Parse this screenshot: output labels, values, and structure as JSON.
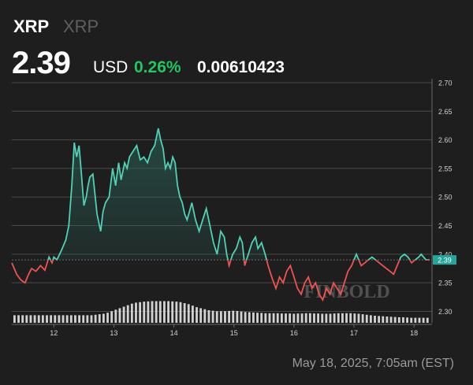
{
  "header": {
    "name": "XRP",
    "ticker": "XRP",
    "price": "2.39",
    "currency": "USD",
    "change": "0.26%",
    "btc_price": "0.00610423"
  },
  "footer": {
    "timestamp": "May 18, 2025, 7:05am (EST)"
  },
  "watermark": "FINBOLD",
  "colors": {
    "background": "#1e1e1e",
    "up_line": "#4fd1b5",
    "down_line": "#ef5350",
    "change_positive": "#22c55e",
    "grid": "#4a4a4a",
    "volume": "#e6e6e6"
  },
  "chart_data": {
    "type": "line",
    "current_price": 2.39,
    "current_price_label": "2.39",
    "baseline": 2.39,
    "ylim": [
      2.28,
      2.7
    ],
    "yticks": [
      "2.30",
      "2.35",
      "2.40",
      "2.45",
      "2.50",
      "2.55",
      "2.60",
      "2.65",
      "2.70"
    ],
    "xlim": [
      11.3,
      18.3
    ],
    "xticks": [
      {
        "label": "12",
        "x": 12
      },
      {
        "label": "13",
        "x": 13
      },
      {
        "label": "14",
        "x": 14
      },
      {
        "label": "15",
        "x": 15
      },
      {
        "label": "16",
        "x": 16
      },
      {
        "label": "17",
        "x": 17
      },
      {
        "label": "18",
        "x": 18
      }
    ],
    "series": [
      {
        "x": [
          11.3,
          11.38,
          11.45,
          11.52,
          11.58,
          11.63,
          11.7,
          11.78,
          11.85,
          11.92,
          11.97,
          12.0,
          12.05,
          12.12,
          12.2,
          12.25,
          12.3,
          12.34,
          12.38,
          12.42,
          12.46,
          12.5,
          12.54,
          12.57,
          12.6,
          12.65,
          12.72,
          12.78,
          12.82,
          12.86,
          12.92,
          12.98,
          13.03,
          13.08,
          13.12,
          13.18,
          13.22,
          13.26,
          13.32,
          13.38,
          13.44,
          13.5,
          13.56,
          13.62,
          13.68,
          13.74,
          13.78,
          13.82,
          13.86,
          13.9,
          13.94,
          13.98,
          14.02,
          14.06,
          14.1,
          14.14,
          14.18,
          14.22,
          14.26,
          14.3,
          14.36,
          14.42,
          14.48,
          14.54,
          14.6,
          14.66,
          14.72,
          14.78,
          14.84,
          14.88,
          14.92,
          14.98,
          15.04,
          15.1,
          15.14,
          15.18,
          15.24,
          15.3,
          15.36,
          15.4,
          15.46,
          15.52,
          15.57,
          15.63,
          15.7,
          15.76,
          15.82,
          15.88,
          15.94,
          16.0,
          16.06,
          16.12,
          16.18,
          16.24,
          16.3,
          16.36,
          16.42,
          16.48,
          16.54,
          16.6,
          16.66,
          16.72,
          16.78,
          16.84,
          16.9,
          16.96,
          17.0,
          17.04,
          17.08,
          17.12,
          17.18,
          17.24,
          17.3,
          17.36,
          17.42,
          17.48,
          17.54,
          17.6,
          17.66,
          17.72,
          17.78,
          17.84,
          17.9,
          17.96,
          18.02,
          18.08,
          18.12,
          18.16,
          18.2,
          18.26
        ],
        "y": [
          2.385,
          2.365,
          2.355,
          2.35,
          2.365,
          2.375,
          2.37,
          2.38,
          2.372,
          2.395,
          2.385,
          2.395,
          2.39,
          2.405,
          2.425,
          2.45,
          2.52,
          2.595,
          2.57,
          2.59,
          2.54,
          2.485,
          2.5,
          2.52,
          2.535,
          2.54,
          2.47,
          2.44,
          2.475,
          2.49,
          2.5,
          2.55,
          2.52,
          2.56,
          2.53,
          2.56,
          2.55,
          2.57,
          2.58,
          2.59,
          2.565,
          2.57,
          2.56,
          2.58,
          2.59,
          2.62,
          2.6,
          2.585,
          2.55,
          2.56,
          2.55,
          2.57,
          2.56,
          2.52,
          2.5,
          2.49,
          2.47,
          2.46,
          2.475,
          2.49,
          2.46,
          2.44,
          2.46,
          2.48,
          2.45,
          2.42,
          2.4,
          2.44,
          2.43,
          2.4,
          2.38,
          2.4,
          2.41,
          2.43,
          2.42,
          2.38,
          2.4,
          2.42,
          2.43,
          2.41,
          2.42,
          2.4,
          2.38,
          2.36,
          2.34,
          2.36,
          2.35,
          2.37,
          2.38,
          2.36,
          2.34,
          2.33,
          2.35,
          2.36,
          2.34,
          2.35,
          2.33,
          2.32,
          2.34,
          2.33,
          2.35,
          2.34,
          2.33,
          2.35,
          2.37,
          2.38,
          2.39,
          2.4,
          2.39,
          2.38,
          2.385,
          2.39,
          2.395,
          2.39,
          2.385,
          2.38,
          2.375,
          2.37,
          2.365,
          2.38,
          2.395,
          2.4,
          2.395,
          2.385,
          2.39,
          2.395,
          2.4,
          2.395,
          2.39,
          2.39
        ]
      }
    ],
    "volume": [
      0.3,
      0.3,
      0.3,
      0.3,
      0.3,
      0.3,
      0.3,
      0.3,
      0.3,
      0.3,
      0.3,
      0.3,
      0.3,
      0.3,
      0.3,
      0.3,
      0.3,
      0.3,
      0.3,
      0.3,
      0.32,
      0.34,
      0.36,
      0.4,
      0.46,
      0.52,
      0.58,
      0.64,
      0.7,
      0.76,
      0.8,
      0.82,
      0.84,
      0.85,
      0.86,
      0.86,
      0.86,
      0.86,
      0.86,
      0.85,
      0.84,
      0.82,
      0.78,
      0.74,
      0.68,
      0.62,
      0.58,
      0.54,
      0.5,
      0.48,
      0.46,
      0.46,
      0.46,
      0.47,
      0.48,
      0.47,
      0.45,
      0.43,
      0.42,
      0.41,
      0.4,
      0.39,
      0.38,
      0.38,
      0.38,
      0.38,
      0.37,
      0.37,
      0.37,
      0.36,
      0.37,
      0.37,
      0.38,
      0.38,
      0.37,
      0.37,
      0.36,
      0.36,
      0.36,
      0.37,
      0.38,
      0.38,
      0.38,
      0.38,
      0.37,
      0.36,
      0.34,
      0.32,
      0.3,
      0.28,
      0.27,
      0.26,
      0.25,
      0.24,
      0.23,
      0.22,
      0.22,
      0.21,
      0.2,
      0.2,
      0.2,
      0.2,
      0.2
    ]
  }
}
